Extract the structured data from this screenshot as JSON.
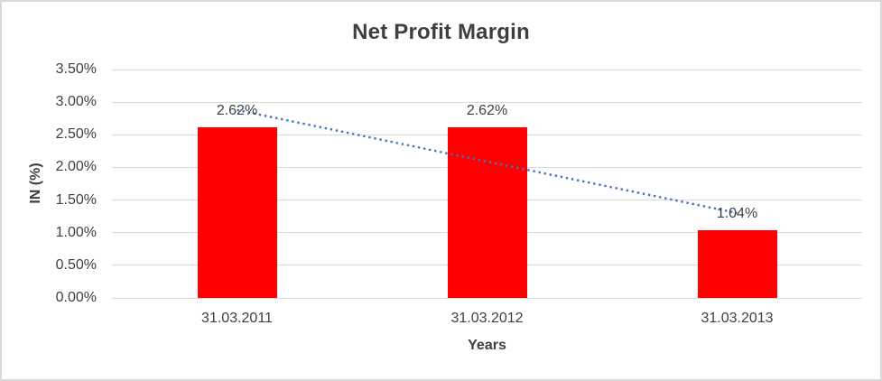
{
  "chart_data": {
    "type": "bar",
    "title": "Net Profit Margin",
    "categories": [
      "31.03.2011",
      "31.03.2012",
      "31.03.2013"
    ],
    "values": [
      2.62,
      2.62,
      1.04
    ],
    "data_labels": [
      "2.62%",
      "2.62%",
      "1.04%"
    ],
    "xlabel": "Years",
    "ylabel": "IN (%)",
    "ylim": [
      0,
      3.5
    ],
    "ytick_step": 0.5,
    "ytick_labels": [
      "0.00%",
      "0.50%",
      "1.00%",
      "1.50%",
      "2.00%",
      "2.50%",
      "3.00%",
      "3.50%"
    ],
    "grid": true,
    "legend": false,
    "bar_color": "#ff0000",
    "text_color": "#404040",
    "gridline_color": "#d9d9d9",
    "background_color": "#ffffff",
    "border_color": "#d9d9d9",
    "trendline": {
      "type": "linear",
      "style": "dotted",
      "color": "#4472c4",
      "start_value": 2.88,
      "end_value": 1.3
    }
  }
}
